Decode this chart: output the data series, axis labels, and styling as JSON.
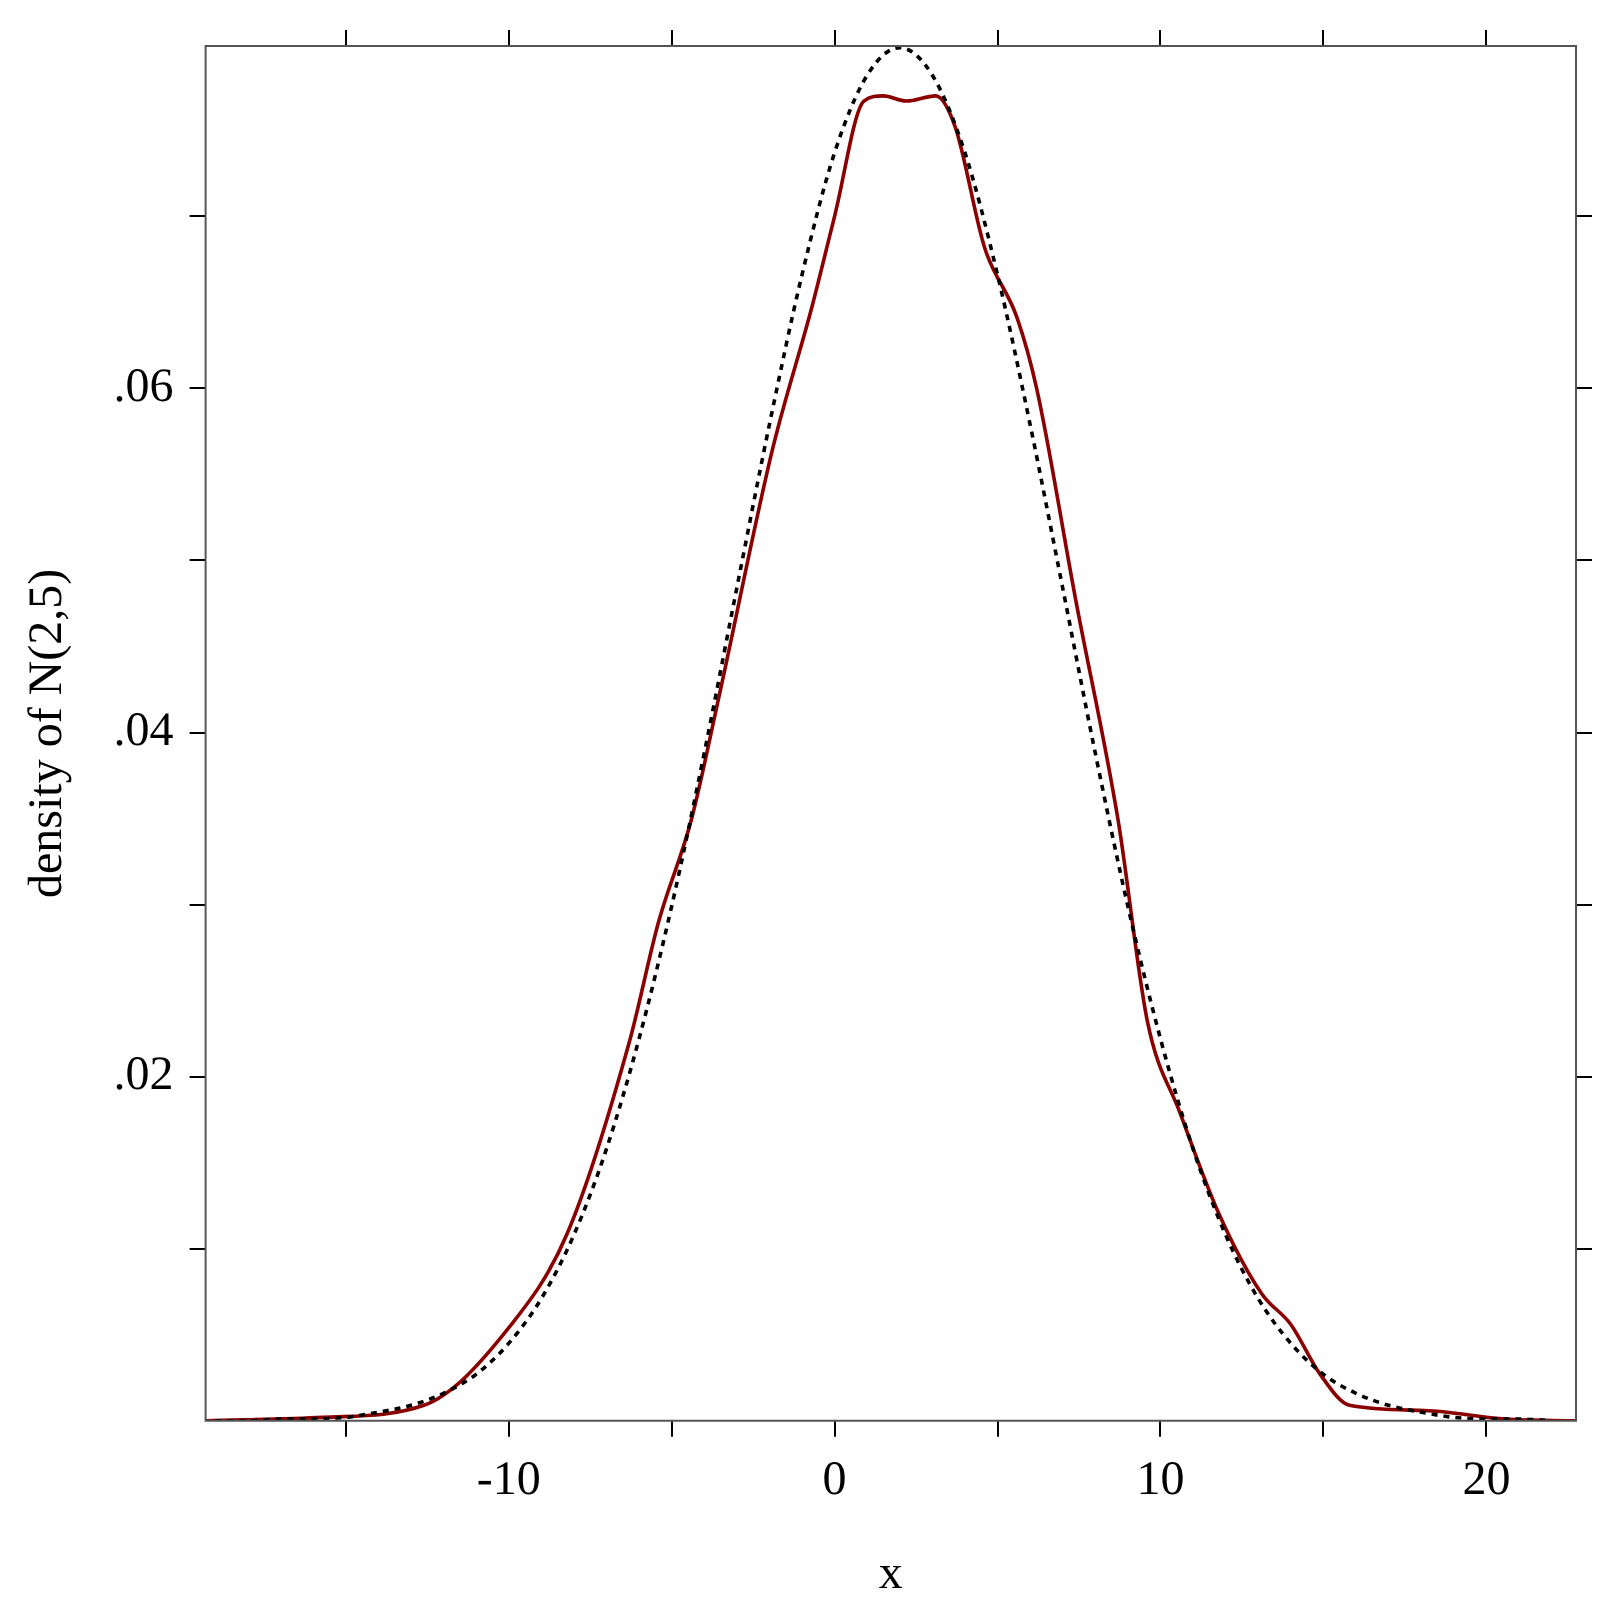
{
  "chart_data": {
    "type": "line",
    "xlabel": "x",
    "ylabel": "density of N(2,5)",
    "xlim": [
      -19.3,
      22.75
    ],
    "ylim": [
      0,
      0.0799
    ],
    "xticks": [
      {
        "value": -15,
        "label": null
      },
      {
        "value": -10,
        "label": "-10"
      },
      {
        "value": -5,
        "label": null
      },
      0,
      {
        "value": 5,
        "label": null
      },
      10,
      {
        "value": 15,
        "label": null
      },
      20
    ],
    "yticks": [
      {
        "value": 0.01,
        "label": null
      },
      {
        "value": 0.02,
        "label": ".02"
      },
      {
        "value": 0.03,
        "label": null
      },
      {
        "value": 0.04,
        "label": ".04"
      },
      {
        "value": 0.05,
        "label": null
      },
      {
        "value": 0.06,
        "label": ".06"
      },
      {
        "value": 0.07,
        "label": null
      }
    ],
    "grid": false,
    "legend": false,
    "marker": "none",
    "series": [
      {
        "color": "#000000",
        "line_style": "dotted",
        "x": [
          -19,
          -18,
          -17,
          -16,
          -15,
          -14,
          -13,
          -12,
          -11,
          -10,
          -9,
          -8,
          -7,
          -6,
          -5,
          -4,
          -3,
          -2,
          -1,
          0,
          1,
          2,
          3,
          4,
          5,
          6,
          7,
          8,
          9,
          10,
          11,
          12,
          13,
          14,
          15,
          16,
          17,
          18,
          19,
          20,
          21,
          22
        ],
        "values": [
          0.0,
          0.0,
          0.0001,
          0.0001,
          0.0002,
          0.0005,
          0.0009,
          0.0016,
          0.0027,
          0.0045,
          0.0071,
          0.0108,
          0.0158,
          0.0222,
          0.0299,
          0.0388,
          0.0484,
          0.0579,
          0.0666,
          0.0737,
          0.0782,
          0.0798,
          0.0782,
          0.0737,
          0.0666,
          0.0579,
          0.0484,
          0.0388,
          0.0299,
          0.0222,
          0.0158,
          0.0108,
          0.0071,
          0.0045,
          0.0027,
          0.0016,
          0.0009,
          0.0005,
          0.0002,
          0.0001,
          0.0001,
          0.0
        ]
      },
      {
        "color": "#8b0000",
        "line_style": "solid",
        "x": [
          -19.3,
          -15.7,
          -12.6,
          -10,
          -8.2,
          -6.3,
          -5.4,
          -4.4,
          -3.5,
          -1.9,
          -0.7,
          0,
          0.9,
          1.5,
          2.2,
          3.1,
          3.7,
          4.6,
          5.6,
          6.2,
          7.4,
          8.7,
          9.6,
          10.6,
          11.8,
          13.1,
          14,
          14.9,
          15.8,
          18.1,
          20.6,
          22.75
        ],
        "values": [
          0,
          0.0002,
          0.0009,
          0.0054,
          0.0109,
          0.022,
          0.029,
          0.0349,
          0.0425,
          0.0565,
          0.0647,
          0.07,
          0.0767,
          0.077,
          0.0767,
          0.077,
          0.0752,
          0.0682,
          0.0641,
          0.06,
          0.0477,
          0.0349,
          0.0232,
          0.0179,
          0.012,
          0.0074,
          0.0056,
          0.0027,
          0.0009,
          0.0006,
          0.0001,
          0
        ]
      }
    ]
  }
}
